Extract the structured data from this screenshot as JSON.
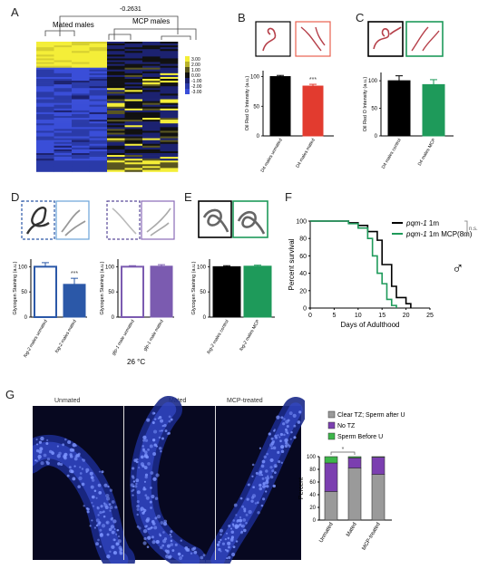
{
  "panels": {
    "A": {
      "letter": "A",
      "dendro_value": "-0.2631",
      "group_left": "Mated males",
      "group_right": "MCP males",
      "legend": [
        "3.00",
        "2.00",
        "1.00",
        "0.00",
        "-1.00",
        "-2.00",
        "-3.00"
      ]
    },
    "B": {
      "letter": "B",
      "ylabel": "Oil Red O Intensity (a.u.)",
      "yticks": [
        "0",
        "50",
        "100"
      ],
      "categories": [
        "D4 males unmated",
        "D4 males mated"
      ],
      "sig": "***",
      "colors": [
        "#000000",
        "#e23b2f"
      ]
    },
    "C": {
      "letter": "C",
      "ylabel": "Oil Red O Intensity (a.u.)",
      "yticks": [
        "0",
        "50",
        "100"
      ],
      "categories": [
        "D4 males control",
        "D4 males MCP"
      ],
      "colors": [
        "#000000",
        "#1e9a5a"
      ]
    },
    "D": {
      "letter": "D",
      "ylabel": "Glycogen Staining (a.u.)",
      "yticks": [
        "0",
        "50",
        "100"
      ],
      "left_categories": [
        "fog-2 males unmated",
        "fog-2 males mated"
      ],
      "right_categories": [
        "glp-1 male unmated",
        "glp-1 male mated"
      ],
      "sig": "***",
      "temp": "26 °C",
      "colors": [
        "#2b58a8",
        "#7b5bb0"
      ]
    },
    "E": {
      "letter": "E",
      "ylabel": "Glycogen Staining (a.u.)",
      "yticks": [
        "0",
        "50",
        "100"
      ],
      "categories": [
        "fog-2 males control",
        "fog-2 males MCP"
      ],
      "colors": [
        "#000000",
        "#1e9a5a"
      ]
    },
    "F": {
      "letter": "F",
      "ylabel": "Percent survival",
      "xlabel": "Days of Adulthood",
      "xticks": [
        "0",
        "5",
        "10",
        "15",
        "20",
        "25"
      ],
      "yticks": [
        "0",
        "20",
        "40",
        "60",
        "80",
        "100"
      ],
      "legend": [
        {
          "gene": "pqm-1",
          "suffix": " 1m",
          "color": "#000000"
        },
        {
          "gene": "pqm-1",
          "suffix": " 1m MCP(8m)",
          "color": "#1e9a5a"
        }
      ],
      "ns": "n.s.",
      "male_symbol": "♂"
    },
    "G": {
      "letter": "G",
      "image_titles": [
        "Unmated",
        "Mated",
        "MCP-treated"
      ],
      "legend": [
        {
          "label": "Clear TZ; Sperm after U",
          "color": "#9a9a9a"
        },
        {
          "label": "No TZ",
          "color": "#7b3fb0"
        },
        {
          "label": "Sperm Before U",
          "color": "#3db54a"
        }
      ],
      "ylabel": "Percent",
      "yticks": [
        "0",
        "20",
        "40",
        "60",
        "80",
        "100"
      ],
      "categories": [
        "Unmated",
        "Mated",
        "MCP-treated"
      ],
      "sig": "*"
    }
  },
  "chart_data": [
    {
      "type": "bar",
      "panel": "B",
      "categories": [
        "D4 males unmated",
        "D4 males mated"
      ],
      "values": [
        100,
        84
      ],
      "errors": [
        2,
        3
      ],
      "ylabel": "Oil Red O Intensity (a.u.)",
      "ylim": [
        0,
        110
      ]
    },
    {
      "type": "bar",
      "panel": "C",
      "categories": [
        "D4 males control",
        "D4 males MCP"
      ],
      "values": [
        100,
        93
      ],
      "errors": [
        9,
        9
      ],
      "ylabel": "Oil Red O Intensity (a.u.)",
      "ylim": [
        0,
        115
      ]
    },
    {
      "type": "bar",
      "panel": "D-left",
      "categories": [
        "fog-2 males unmated",
        "fog-2 males mated"
      ],
      "values": [
        100,
        65
      ],
      "errors": [
        8,
        12
      ],
      "ylabel": "Glycogen Staining (a.u.)",
      "ylim": [
        0,
        115
      ]
    },
    {
      "type": "bar",
      "panel": "D-right",
      "categories": [
        "glp-1 male unmated",
        "glp-1 male mated"
      ],
      "values": [
        100,
        101
      ],
      "errors": [
        2,
        3
      ],
      "ylabel": "Glycogen Staining (a.u.)",
      "ylim": [
        0,
        115
      ]
    },
    {
      "type": "bar",
      "panel": "E",
      "categories": [
        "fog-2 males control",
        "fog-2 males MCP"
      ],
      "values": [
        100,
        101
      ],
      "errors": [
        2,
        2
      ],
      "ylabel": "Glycogen Staining (a.u.)",
      "ylim": [
        0,
        115
      ]
    },
    {
      "type": "line",
      "panel": "F",
      "xlabel": "Days of Adulthood",
      "ylabel": "Percent survival",
      "xlim": [
        0,
        25
      ],
      "ylim": [
        0,
        100
      ],
      "series": [
        {
          "name": "pqm-1 1m",
          "x": [
            0,
            6,
            8,
            10,
            12,
            14,
            15,
            17,
            18,
            20,
            21
          ],
          "y": [
            100,
            100,
            98,
            95,
            88,
            78,
            50,
            25,
            12,
            5,
            0
          ]
        },
        {
          "name": "pqm-1 1m MCP(8m)",
          "x": [
            0,
            5,
            8,
            10,
            12,
            13,
            14,
            15,
            16,
            17,
            18
          ],
          "y": [
            100,
            100,
            97,
            92,
            80,
            60,
            40,
            28,
            10,
            3,
            0
          ]
        }
      ]
    },
    {
      "type": "bar",
      "panel": "G",
      "stacked": true,
      "categories": [
        "Unmated",
        "Mated",
        "MCP-treated"
      ],
      "ylabel": "Percent",
      "ylim": [
        0,
        100
      ],
      "series": [
        {
          "name": "Clear TZ; Sperm after U",
          "values": [
            45,
            82,
            72
          ]
        },
        {
          "name": "No TZ",
          "values": [
            45,
            16,
            27
          ]
        },
        {
          "name": "Sperm Before U",
          "values": [
            10,
            2,
            1
          ]
        }
      ]
    }
  ]
}
